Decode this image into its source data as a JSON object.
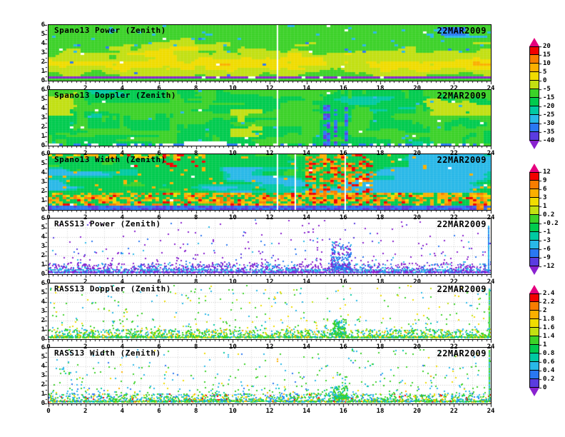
{
  "figure": {
    "background_color": "#ffffff",
    "date": "22MAR2009"
  },
  "axes": {
    "x_tick_labels": [
      "0",
      "2",
      "4",
      "6",
      "8",
      "10",
      "12",
      "14",
      "16",
      "18",
      "20",
      "22",
      "24"
    ],
    "y_tick_labels": [
      "0",
      "1",
      "2",
      "3",
      "4",
      "5",
      "6"
    ],
    "x_range": [
      0,
      24
    ],
    "y_range": [
      0,
      6
    ]
  },
  "dot_palette": {
    "red": "#f20000",
    "orange": "#fbaf00",
    "yellow": "#f0dc00",
    "light-green": "#c2e012",
    "green": "#3cd228",
    "teal": "#00c9a2",
    "cyan": "#29b8e8",
    "blue": "#2a78f2",
    "violet": "#5a3ce0",
    "purple": "#8a22d0",
    "white": "#ffffff"
  },
  "colorbars": [
    {
      "tick_labels": [
        "20",
        "15",
        "10",
        "5",
        "0",
        "-5",
        "-15",
        "-20",
        "-25",
        "-30",
        "-35",
        "-40"
      ],
      "segment_colors": [
        "#f20000",
        "#f87d00",
        "#fbaf00",
        "#f0dc00",
        "#c2e012",
        "#3cd228",
        "#00cb4e",
        "#00c9a2",
        "#29b8e8",
        "#2a78f2",
        "#5a3ce0"
      ],
      "arrow_top_color": "#e6007e",
      "arrow_bottom_color": "#8a22d0"
    },
    {
      "tick_labels": [
        "12",
        "9",
        "6",
        "3",
        "1",
        "0.2",
        "-0.2",
        "-1",
        "-3",
        "-6",
        "-9",
        "-12"
      ],
      "segment_colors": [
        "#f20000",
        "#f87d00",
        "#fbaf00",
        "#f0dc00",
        "#c2e012",
        "#3cd228",
        "#00cb4e",
        "#00c9a2",
        "#29b8e8",
        "#2a78f2",
        "#5a3ce0"
      ],
      "arrow_top_color": "#e6007e",
      "arrow_bottom_color": "#8a22d0"
    },
    {
      "tick_labels": [
        "2.4",
        "2.2",
        "2",
        "1.8",
        "1.6",
        "1.4",
        "1",
        "0.8",
        "0.6",
        "0.4",
        "0.2",
        "0"
      ],
      "segment_colors": [
        "#f20000",
        "#f87d00",
        "#fbaf00",
        "#f0dc00",
        "#c2e012",
        "#3cd228",
        "#00cb4e",
        "#00c9a2",
        "#29b8e8",
        "#2a78f2",
        "#5a3ce0"
      ],
      "arrow_top_color": "#e6007e",
      "arrow_bottom_color": "#8a22d0"
    }
  ],
  "chart_data": [
    {
      "type": "heatmap",
      "title": "Spano13 Power (Zenith)",
      "annotation": "22MAR2009",
      "style": "spano-power",
      "seed": 11,
      "colorbar_index": 0,
      "x_range": [
        0,
        24
      ],
      "y_range": [
        0,
        6
      ],
      "features": {
        "background": "green",
        "warm_band": {
          "km_center": 1.7,
          "km_spread": 1.3
        },
        "mid_altitude_warm_blobs_km": 3.4,
        "cold_specks_above_km": 3.0,
        "blue_blob": {
          "hour": 21.9,
          "km": 5.3
        },
        "top_right_cyan_patch": {
          "hours": [
            20,
            24
          ],
          "km": [
            4.6,
            6
          ]
        },
        "surface_line": {
          "km": 0.3,
          "color": "purple",
          "white_gaps_hours": [
            6.8,
            16.5
          ]
        },
        "gap_hours": [
          12.37
        ]
      }
    },
    {
      "type": "heatmap",
      "title": "Spano13 Doppler (Zenith)",
      "annotation": "22MAR2009",
      "style": "spano-doppler",
      "seed": 22,
      "colorbar_index": 0,
      "x_range": [
        0,
        24
      ],
      "y_range": [
        0,
        6
      ],
      "features": {
        "background": "teal-green mottled",
        "yellow_green_patches": [
          {
            "hours": [
              0,
              1.6
            ],
            "km": [
              3.3,
              6
            ]
          },
          {
            "hours": [
              19.3,
              24
            ],
            "km": [
              3.3,
              6
            ]
          },
          {
            "hours": [
              9.8,
              11.6
            ],
            "km": [
              1,
              4
            ]
          }
        ],
        "dark_blue_streaks": {
          "hours": [
            14.9,
            16.3
          ],
          "km": [
            0,
            4.3
          ]
        },
        "bottom_white_gap_hours": [
          7.3,
          9.7
        ],
        "gap_hours": [
          12.37
        ]
      }
    },
    {
      "type": "heatmap",
      "title": "Spano13 Width (Zenith)",
      "annotation": "22MAR2009",
      "style": "spano-width",
      "seed": 33,
      "colorbar_index": 1,
      "x_range": [
        0,
        24
      ],
      "y_range": [
        0,
        6
      ],
      "features": {
        "background": "green",
        "cyan_patches_km": [
          1.8,
          4.6
        ],
        "right_cyan_region": {
          "hours": [
            19.6,
            24
          ],
          "km": [
            2.2,
            6
          ]
        },
        "warm_speckle_band_km": [
          0.55,
          1.75
        ],
        "heavy_warm_region": {
          "hours": [
            13.9,
            17.7
          ],
          "km": [
            0.7,
            6
          ]
        },
        "red_specks_top": {
          "hours": [
            4.3,
            8.6
          ],
          "km": [
            4.7,
            6
          ]
        },
        "top_left_warm_row": {
          "hours": [
            0,
            8.5
          ],
          "km": [
            5.5,
            6
          ]
        },
        "surface_line": {
          "km": 0.3,
          "color": "blue-violet"
        },
        "gap_hours": [
          12.37,
          13.35,
          16.06
        ]
      }
    },
    {
      "type": "scatter-heatmap",
      "title": "RASS13 Power (Zenith)",
      "annotation": "22MAR2009",
      "style": "rass",
      "seed": 44,
      "colorbar_index": 1,
      "x_range": [
        0,
        24
      ],
      "y_range": [
        0,
        6
      ],
      "features": {
        "background": "white",
        "surface_band": {
          "km_range": [
            0.25,
            1.2
          ],
          "count": 1600,
          "colors": {
            "purple": 0.5,
            "violet": 0.14,
            "blue": 0.16,
            "cyan": 0.2
          }
        },
        "cyan_line_km": 0.52,
        "upper_scatter": {
          "count": 260,
          "colors": {
            "purple": 0.62,
            "violet": 0.12,
            "blue": 0.16,
            "cyan": 0.1
          }
        },
        "event_cluster": {
          "hour_range": [
            15.3,
            16.4
          ],
          "km_max": 3.6,
          "count": 240,
          "colors": {
            "blue": 0.4,
            "purple": 0.35,
            "cyan": 0.25
          }
        },
        "right_edge_stripe": {
          "hour": 23.85,
          "km_range": [
            0.3,
            5.3
          ],
          "colors": {
            "cyan": 0.55,
            "blue": 0.45
          }
        }
      }
    },
    {
      "type": "scatter-heatmap",
      "title": "RASS13 Doppler (Zenith)",
      "annotation": "22MAR2009",
      "style": "rass",
      "seed": 55,
      "colorbar_index": 2,
      "x_range": [
        0,
        24
      ],
      "y_range": [
        0,
        6
      ],
      "features": {
        "background": "white",
        "surface_band": {
          "km_range": [
            0.25,
            1.1
          ],
          "count": 1600,
          "colors": {
            "green": 0.45,
            "teal": 0.15,
            "cyan": 0.15,
            "light-green": 0.1,
            "yellow": 0.1,
            "orange": 0.05
          }
        },
        "upper_scatter": {
          "count": 330,
          "colors": {
            "green": 0.4,
            "cyan": 0.25,
            "yellow": 0.22,
            "light-green": 0.08,
            "teal": 0.05
          }
        },
        "event_cluster": {
          "hour_range": [
            15.4,
            16.1
          ],
          "km_max": 2.2,
          "count": 150,
          "colors": {
            "green": 0.6,
            "teal": 0.2,
            "cyan": 0.2
          }
        },
        "right_edge_stripe": {
          "hour": 23.9,
          "km_range": [
            0.3,
            5.6
          ],
          "colors": {
            "green": 0.7,
            "cyan": 0.2,
            "yellow": 0.1
          }
        }
      }
    },
    {
      "type": "scatter-heatmap",
      "title": "RASS13 Width (Zenith)",
      "annotation": "22MAR2009",
      "style": "rass",
      "seed": 66,
      "colorbar_index": 2,
      "x_range": [
        0,
        24
      ],
      "y_range": [
        0,
        6
      ],
      "features": {
        "background": "white",
        "surface_band": {
          "km_range": [
            0.25,
            1.1
          ],
          "count": 1600,
          "colors": {
            "green": 0.4,
            "cyan": 0.22,
            "teal": 0.12,
            "blue": 0.08,
            "yellow": 0.08,
            "orange": 0.06,
            "red": 0.04
          }
        },
        "upper_scatter": {
          "count": 380,
          "colors": {
            "green": 0.42,
            "cyan": 0.3,
            "blue": 0.1,
            "teal": 0.08,
            "yellow": 0.07,
            "orange": 0.03
          }
        },
        "event_cluster": {
          "hour_range": [
            15.4,
            16.2
          ],
          "km_max": 2.0,
          "count": 130,
          "colors": {
            "green": 0.55,
            "cyan": 0.3,
            "teal": 0.15
          }
        },
        "right_edge_stripe": {
          "hour": 23.9,
          "km_range": [
            0.3,
            5.8
          ],
          "colors": {
            "green": 0.6,
            "cyan": 0.4
          }
        }
      }
    }
  ]
}
